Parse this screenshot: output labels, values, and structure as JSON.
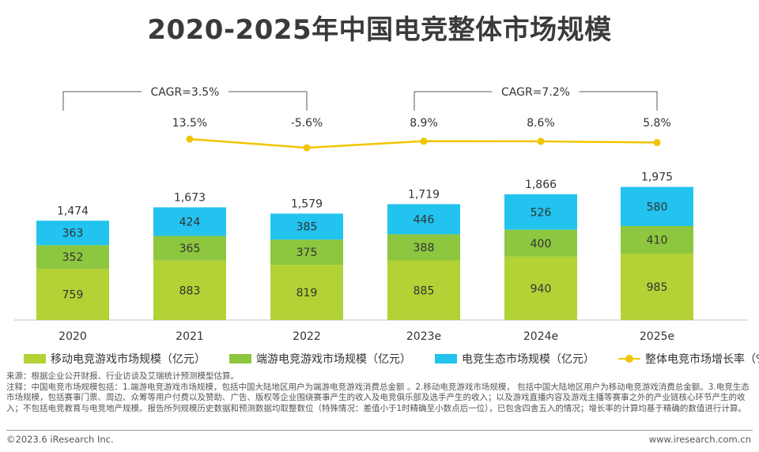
{
  "title": "2020-2025年中国电竞整体市场规模",
  "chart_data": {
    "type": "bar",
    "stacked": true,
    "categories": [
      "2020",
      "2021",
      "2022",
      "2023e",
      "2024e",
      "2025e"
    ],
    "series": [
      {
        "name": "移动电竞游戏市场规模（亿元）",
        "color": "#b2d235",
        "values": [
          759,
          883,
          819,
          885,
          940,
          985
        ]
      },
      {
        "name": "端游电竞游戏市场规模（亿元）",
        "color": "#8dc63f",
        "values": [
          352,
          365,
          375,
          388,
          400,
          410
        ]
      },
      {
        "name": "电竞生态市场规模（亿元）",
        "color": "#22c3ee",
        "values": [
          363,
          424,
          385,
          446,
          526,
          580
        ]
      }
    ],
    "totals": [
      "1,474",
      "1,673",
      "1,579",
      "1,719",
      "1,866",
      "1,975"
    ],
    "line": {
      "name": "整体电竞市场增长率（%）",
      "color": "#f2c400",
      "categories": [
        "2021",
        "2022",
        "2023e",
        "2024e",
        "2025e"
      ],
      "values": [
        13.5,
        -5.6,
        8.9,
        8.6,
        5.8
      ],
      "labels": [
        "13.5%",
        "-5.6%",
        "8.9%",
        "8.6%",
        "5.8%"
      ]
    },
    "cagr": [
      {
        "label": "CAGR=3.5%",
        "from": "2020",
        "to": "2022"
      },
      {
        "label": "CAGR=7.2%",
        "from": "2023e",
        "to": "2025e"
      }
    ],
    "legend_position": "bottom"
  },
  "notes": {
    "source": "来源：根据企业公开财报、行业访谈及艾瑞统计预测模型估算。",
    "note": "注释：中国电竞市场规模包括：1.端游电竞游戏市场规模，包括中国大陆地区用户为端游电竞游戏消费总金额 。2.移动电竞游戏市场规模， 包括中国大陆地区用户为移动电竞游戏消费总金额。3.电竞生态市场规模，包括赛事门票、周边、众筹等用户付费以及赞助、广告、版权等企业围绕赛事产生的收入及电竞俱乐部及选手产生的收入；以及游戏直播内容及游戏主播等赛事之外的产业链核心环节产生的收入；不包括电竞教育与电竞地产规模。报告所列规模历史数据和预测数据均取整数位（特殊情况：差值小于1时精确至小数点后一位），已包含四舍五入的情况；增长率的计算均基于精确的数值进行计算。"
  },
  "footer": {
    "copyright": "©2023.6 iResearch Inc.",
    "website": "www.iresearch.com.cn"
  }
}
